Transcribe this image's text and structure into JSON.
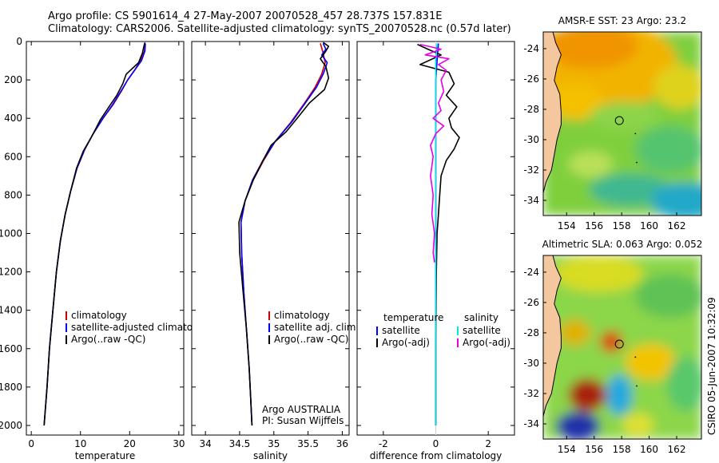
{
  "header": {
    "title_line1": "Argo profile: CS 5901614_4 27-May-2007 20070528_457 28.737S 157.831E",
    "title_line2": "Climatology: CARS2006. Satellite-adjusted climatology: synTS_20070528.nc (0.57d later)"
  },
  "side_stamp": "CSIRO 05-Jun-2007 10:32:09",
  "colors": {
    "climatology": "#cc0000",
    "satellite": "#0000ff",
    "argo": "#000000",
    "sal_satellite": "#00e5e5",
    "sal_argo": "#e600e6",
    "land": "#f5c79e"
  },
  "chart_data": [
    {
      "type": "line",
      "name": "temperature",
      "xlabel": "temperature",
      "ylabel": "",
      "xlim": [
        -1,
        31
      ],
      "ylim": [
        2050,
        0
      ],
      "y_reversed": true,
      "xticks": [
        0,
        10,
        20,
        30
      ],
      "yticks": [
        0,
        200,
        400,
        600,
        800,
        1000,
        1200,
        1400,
        1600,
        1800,
        2000
      ],
      "legend": {
        "placement": "lower-right",
        "entries": [
          "climatology",
          "satellite-adjusted climatolog",
          "Argo(..raw -QC)"
        ]
      },
      "series": [
        {
          "name": "climatology",
          "color": "#cc0000",
          "points": [
            [
              23.1,
              10
            ],
            [
              23.0,
              50
            ],
            [
              22.2,
              100
            ],
            [
              21.0,
              150
            ],
            [
              19.6,
              200
            ],
            [
              18.3,
              260
            ],
            [
              16.6,
              330
            ],
            [
              14.6,
              400
            ],
            [
              12.6,
              480
            ],
            [
              10.9,
              560
            ],
            [
              9.3,
              660
            ],
            [
              8.0,
              780
            ],
            [
              6.9,
              900
            ],
            [
              5.9,
              1040
            ],
            [
              5.1,
              1200
            ],
            [
              4.4,
              1400
            ],
            [
              3.7,
              1600
            ],
            [
              3.2,
              1800
            ],
            [
              2.6,
              2000
            ]
          ]
        },
        {
          "name": "satellite-adjusted climatolog",
          "color": "#0000ff",
          "points": [
            [
              23.2,
              10
            ],
            [
              23.1,
              50
            ],
            [
              22.4,
              100
            ],
            [
              21.0,
              150
            ],
            [
              19.6,
              200
            ],
            [
              18.2,
              260
            ],
            [
              16.5,
              330
            ],
            [
              14.6,
              400
            ],
            [
              12.6,
              480
            ],
            [
              10.9,
              560
            ],
            [
              9.3,
              660
            ],
            [
              8.0,
              780
            ],
            [
              6.9,
              900
            ],
            [
              5.9,
              1040
            ],
            [
              5.1,
              1200
            ],
            [
              4.4,
              1400
            ],
            [
              3.7,
              1600
            ],
            [
              3.2,
              1800
            ],
            [
              2.6,
              2000
            ]
          ]
        },
        {
          "name": "Argo(..raw -QC)",
          "color": "#000000",
          "points": [
            [
              23.1,
              5
            ],
            [
              22.9,
              25
            ],
            [
              22.6,
              60
            ],
            [
              21.8,
              110
            ],
            [
              19.3,
              170
            ],
            [
              18.6,
              220
            ],
            [
              17.4,
              280
            ],
            [
              15.8,
              340
            ],
            [
              14.0,
              410
            ],
            [
              12.4,
              490
            ],
            [
              10.6,
              570
            ],
            [
              9.2,
              660
            ],
            [
              8.0,
              780
            ],
            [
              6.9,
              900
            ],
            [
              5.9,
              1040
            ],
            [
              5.1,
              1200
            ],
            [
              4.4,
              1400
            ],
            [
              3.7,
              1600
            ],
            [
              3.2,
              1800
            ],
            [
              2.6,
              2000
            ]
          ]
        }
      ]
    },
    {
      "type": "line",
      "name": "salinity",
      "xlabel": "salinity",
      "ylabel": "",
      "xlim": [
        33.8,
        36.1
      ],
      "ylim": [
        2050,
        0
      ],
      "y_reversed": true,
      "xticks": [
        34,
        34.5,
        35,
        35.5,
        36
      ],
      "legend": {
        "placement": "lower-right",
        "entries": [
          "climatology",
          "satellite adj. clim.",
          "Argo(..raw -QC)"
        ]
      },
      "annotation": {
        "line1": "Argo AUSTRALIA",
        "line2": "PI: Susan Wijffels"
      },
      "series": [
        {
          "name": "climatology",
          "color": "#cc0000",
          "points": [
            [
              35.68,
              10
            ],
            [
              35.72,
              60
            ],
            [
              35.75,
              110
            ],
            [
              35.7,
              170
            ],
            [
              35.6,
              240
            ],
            [
              35.45,
              320
            ],
            [
              35.25,
              420
            ],
            [
              35.02,
              520
            ],
            [
              34.85,
              620
            ],
            [
              34.7,
              720
            ],
            [
              34.58,
              830
            ],
            [
              34.52,
              940
            ],
            [
              34.53,
              1100
            ],
            [
              34.56,
              1300
            ],
            [
              34.6,
              1500
            ],
            [
              34.64,
              1700
            ],
            [
              34.66,
              1850
            ],
            [
              34.68,
              2000
            ]
          ]
        },
        {
          "name": "satellite adj. clim.",
          "color": "#0000ff",
          "points": [
            [
              35.72,
              10
            ],
            [
              35.76,
              40
            ],
            [
              35.7,
              70
            ],
            [
              35.78,
              110
            ],
            [
              35.72,
              170
            ],
            [
              35.62,
              240
            ],
            [
              35.46,
              320
            ],
            [
              35.26,
              420
            ],
            [
              35.02,
              520
            ],
            [
              34.84,
              620
            ],
            [
              34.69,
              720
            ],
            [
              34.58,
              830
            ],
            [
              34.52,
              940
            ],
            [
              34.53,
              1100
            ],
            [
              34.56,
              1300
            ],
            [
              34.6,
              1500
            ],
            [
              34.64,
              1700
            ],
            [
              34.66,
              1850
            ],
            [
              34.68,
              2000
            ]
          ]
        },
        {
          "name": "Argo(..raw -QC)",
          "color": "#000000",
          "points": [
            [
              35.72,
              5
            ],
            [
              35.8,
              25
            ],
            [
              35.76,
              50
            ],
            [
              35.68,
              90
            ],
            [
              35.76,
              130
            ],
            [
              35.8,
              190
            ],
            [
              35.74,
              250
            ],
            [
              35.52,
              320
            ],
            [
              35.34,
              400
            ],
            [
              35.18,
              470
            ],
            [
              34.96,
              540
            ],
            [
              34.84,
              620
            ],
            [
              34.7,
              720
            ],
            [
              34.58,
              830
            ],
            [
              34.49,
              940
            ],
            [
              34.5,
              1100
            ],
            [
              34.55,
              1300
            ],
            [
              34.6,
              1500
            ],
            [
              34.64,
              1700
            ],
            [
              34.66,
              1850
            ],
            [
              34.68,
              2000
            ]
          ]
        }
      ]
    },
    {
      "type": "line",
      "name": "difference",
      "xlabel": "difference from climatology",
      "ylabel": "",
      "xlim": [
        -3,
        3
      ],
      "ylim": [
        2050,
        0
      ],
      "y_reversed": true,
      "xticks": [
        -2,
        0,
        2
      ],
      "legend": {
        "placement": "lower",
        "temperature_header": "temperature",
        "salinity_header": "salinity",
        "entries": [
          "satellite",
          "Argo(-adj)",
          "satellite",
          "Argo(-adj)"
        ]
      },
      "series": [
        {
          "name": "satellite",
          "group": "temperature",
          "color": "#0000ff",
          "points": [
            [
              0.1,
              10
            ],
            [
              0.05,
              100
            ],
            [
              0.0,
              200
            ],
            [
              0.0,
              400
            ],
            [
              0.0,
              800
            ],
            [
              0.0,
              2000
            ]
          ]
        },
        {
          "name": "Argo(-adj)",
          "group": "temperature",
          "color": "#000000",
          "points": [
            [
              -0.7,
              15
            ],
            [
              -0.3,
              40
            ],
            [
              0.2,
              70
            ],
            [
              -0.6,
              120
            ],
            [
              0.5,
              160
            ],
            [
              0.7,
              220
            ],
            [
              0.4,
              280
            ],
            [
              0.8,
              340
            ],
            [
              0.5,
              400
            ],
            [
              0.6,
              450
            ],
            [
              0.9,
              500
            ],
            [
              0.7,
              560
            ],
            [
              0.4,
              620
            ],
            [
              0.2,
              700
            ],
            [
              0.15,
              800
            ],
            [
              0.1,
              900
            ],
            [
              0.05,
              1000
            ],
            [
              0.02,
              1200
            ],
            [
              0.0,
              1600
            ],
            [
              0.0,
              2000
            ]
          ]
        },
        {
          "name": "satellite",
          "group": "salinity",
          "color": "#00e5e5",
          "points": [
            [
              0.05,
              10
            ],
            [
              0.0,
              100
            ],
            [
              0.0,
              300
            ],
            [
              0.0,
              800
            ],
            [
              0.0,
              2000
            ]
          ]
        },
        {
          "name": "Argo(-adj)",
          "group": "salinity",
          "color": "#e600e6",
          "points": [
            [
              -0.6,
              15
            ],
            [
              0.2,
              40
            ],
            [
              -0.4,
              70
            ],
            [
              0.5,
              90
            ],
            [
              0.1,
              120
            ],
            [
              0.4,
              150
            ],
            [
              0.2,
              200
            ],
            [
              0.3,
              260
            ],
            [
              0.1,
              320
            ],
            [
              0.2,
              360
            ],
            [
              -0.1,
              400
            ],
            [
              0.3,
              440
            ],
            [
              0.0,
              480
            ],
            [
              -0.2,
              540
            ],
            [
              -0.1,
              600
            ],
            [
              -0.2,
              700
            ],
            [
              -0.1,
              800
            ],
            [
              -0.15,
              900
            ],
            [
              -0.05,
              1000
            ],
            [
              -0.1,
              1100
            ],
            [
              -0.05,
              1150
            ]
          ]
        }
      ]
    },
    {
      "type": "heatmap",
      "name": "sst_map",
      "title": "AMSR-E SST: 23 Argo: 23.2",
      "xlim": [
        152.3,
        163.8
      ],
      "ylim": [
        -35.0,
        -22.9
      ],
      "xticks": [
        154,
        156,
        158,
        160,
        162
      ],
      "yticks": [
        -24,
        -26,
        -28,
        -30,
        -32,
        -34
      ],
      "float_position": [
        157.83,
        -28.74
      ]
    },
    {
      "type": "heatmap",
      "name": "sla_map",
      "title": "Altimetric SLA: 0.063 Argo: 0.052",
      "xlim": [
        152.3,
        163.8
      ],
      "ylim": [
        -35.0,
        -22.9
      ],
      "xticks": [
        154,
        156,
        158,
        160,
        162
      ],
      "yticks": [
        -24,
        -26,
        -28,
        -30,
        -32,
        -34
      ],
      "float_position": [
        157.83,
        -28.74
      ]
    }
  ]
}
